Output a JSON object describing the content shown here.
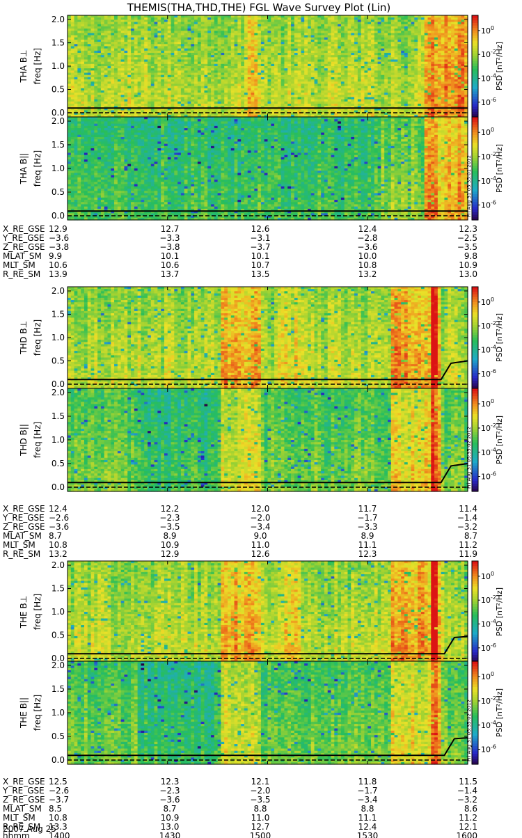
{
  "title": "THEMIS(THA,THD,THE) FGL Wave Survey Plot (Lin)",
  "date_label": "2007 Aug 25",
  "colorbar_label": "PSD [nT²/Hz]",
  "colors": {
    "spectrogram_low": "#3a0a5a",
    "spectrogram_mid": "#33cc66",
    "spectrogram_high": "#dd1a1a",
    "frame": "#000000",
    "trace": "#000000"
  },
  "chart_data": {
    "type": "heatmap",
    "title": "THEMIS(THA,THD,THE) FGL Wave Survey Plot (Lin)",
    "x_axis": {
      "label": "hhmm",
      "ticks": [
        "1400",
        "1430",
        "1500",
        "1530",
        "1600"
      ],
      "range": [
        "1400",
        "1600"
      ]
    },
    "colorbar": {
      "label": "PSD [nT²/Hz]",
      "scale": "log",
      "ticks": [
        {
          "base": "10",
          "exp": "0"
        },
        {
          "base": "10",
          "exp": "-2"
        },
        {
          "base": "10",
          "exp": "-4"
        },
        {
          "base": "10",
          "exp": "-6"
        }
      ]
    },
    "frequency_axis": {
      "label": "freq [Hz]",
      "ticks": [
        "0.0",
        "0.5",
        "1.0",
        "1.5",
        "2.0"
      ],
      "range": [
        0,
        2.0
      ]
    },
    "probes": [
      {
        "id": "THA",
        "panels": [
          {
            "label": "THA B⊥",
            "component": "perp",
            "stamp": ""
          },
          {
            "label": "THA B||",
            "component": "par",
            "stamp": "Fri Aug 31 05:35:01 2012"
          }
        ],
        "trace_freq": {
          "x": [
            "1400",
            "1430",
            "1500",
            "1530",
            "1600"
          ],
          "y": [
            0.1,
            0.1,
            0.1,
            0.1,
            0.1
          ]
        },
        "orbit_table": [
          {
            "name": "X_RE_GSE",
            "values": [
              "12.9",
              "12.7",
              "12.6",
              "12.4",
              "12.3"
            ]
          },
          {
            "name": "Y_RE_GSE",
            "values": [
              "−3.6",
              "−3.3",
              "−3.1",
              "−2.8",
              "−2.5"
            ]
          },
          {
            "name": "Z_RE_GSE",
            "values": [
              "−3.8",
              "−3.8",
              "−3.7",
              "−3.6",
              "−3.5"
            ]
          },
          {
            "name": "MLAT_SM",
            "values": [
              "9.9",
              "10.1",
              "10.1",
              "10.0",
              "9.8"
            ]
          },
          {
            "name": "MLT_SM",
            "values": [
              "10.6",
              "10.6",
              "10.7",
              "10.8",
              "10.9"
            ]
          },
          {
            "name": "R_RE_SM",
            "values": [
              "13.9",
              "13.7",
              "13.5",
              "13.2",
              "13.0"
            ]
          }
        ]
      },
      {
        "id": "THD",
        "panels": [
          {
            "label": "THD B⊥",
            "component": "perp",
            "stamp": ""
          },
          {
            "label": "THD B||",
            "component": "par",
            "stamp": "Fri Aug 31 05:35:02 2012"
          }
        ],
        "trace_freq": {
          "x": [
            "1400",
            "1430",
            "1500",
            "1530",
            "1552",
            "1555",
            "1600"
          ],
          "y": [
            0.1,
            0.1,
            0.1,
            0.1,
            0.1,
            0.45,
            0.5
          ]
        },
        "orbit_table": [
          {
            "name": "X_RE_GSE",
            "values": [
              "12.4",
              "12.2",
              "12.0",
              "11.7",
              "11.4"
            ]
          },
          {
            "name": "Y_RE_GSE",
            "values": [
              "−2.6",
              "−2.3",
              "−2.0",
              "−1.7",
              "−1.4"
            ]
          },
          {
            "name": "Z_RE_GSE",
            "values": [
              "−3.6",
              "−3.5",
              "−3.4",
              "−3.3",
              "−3.2"
            ]
          },
          {
            "name": "MLAT_SM",
            "values": [
              "8.7",
              "8.9",
              "9.0",
              "8.9",
              "8.7"
            ]
          },
          {
            "name": "MLT_SM",
            "values": [
              "10.8",
              "10.9",
              "11.0",
              "11.1",
              "11.2"
            ]
          },
          {
            "name": "R_RE_SM",
            "values": [
              "13.2",
              "12.9",
              "12.6",
              "12.3",
              "11.9"
            ]
          }
        ]
      },
      {
        "id": "THE",
        "panels": [
          {
            "label": "THE B⊥",
            "component": "perp",
            "stamp": ""
          },
          {
            "label": "THE B||",
            "component": "par",
            "stamp": "Fri Aug 31 05:35:02 2012"
          }
        ],
        "trace_freq": {
          "x": [
            "1400",
            "1430",
            "1500",
            "1530",
            "1553",
            "1556",
            "1600"
          ],
          "y": [
            0.1,
            0.1,
            0.1,
            0.1,
            0.1,
            0.45,
            0.47
          ]
        },
        "orbit_table": [
          {
            "name": "X_RE_GSE",
            "values": [
              "12.5",
              "12.3",
              "12.1",
              "11.8",
              "11.5"
            ]
          },
          {
            "name": "Y_RE_GSE",
            "values": [
              "−2.6",
              "−2.3",
              "−2.0",
              "−1.7",
              "−1.4"
            ]
          },
          {
            "name": "Z_RE_GSE",
            "values": [
              "−3.7",
              "−3.6",
              "−3.5",
              "−3.4",
              "−3.2"
            ]
          },
          {
            "name": "MLAT_SM",
            "values": [
              "8.5",
              "8.7",
              "8.8",
              "8.8",
              "8.6"
            ]
          },
          {
            "name": "MLT_SM",
            "values": [
              "10.8",
              "10.9",
              "11.0",
              "11.1",
              "11.2"
            ]
          },
          {
            "name": "R_RE_SM",
            "values": [
              "13.3",
              "13.0",
              "12.7",
              "12.4",
              "12.1"
            ]
          },
          {
            "name": "hhmm",
            "values": [
              "1400",
              "1430",
              "1500",
              "1530",
              "1600"
            ]
          }
        ]
      }
    ]
  }
}
